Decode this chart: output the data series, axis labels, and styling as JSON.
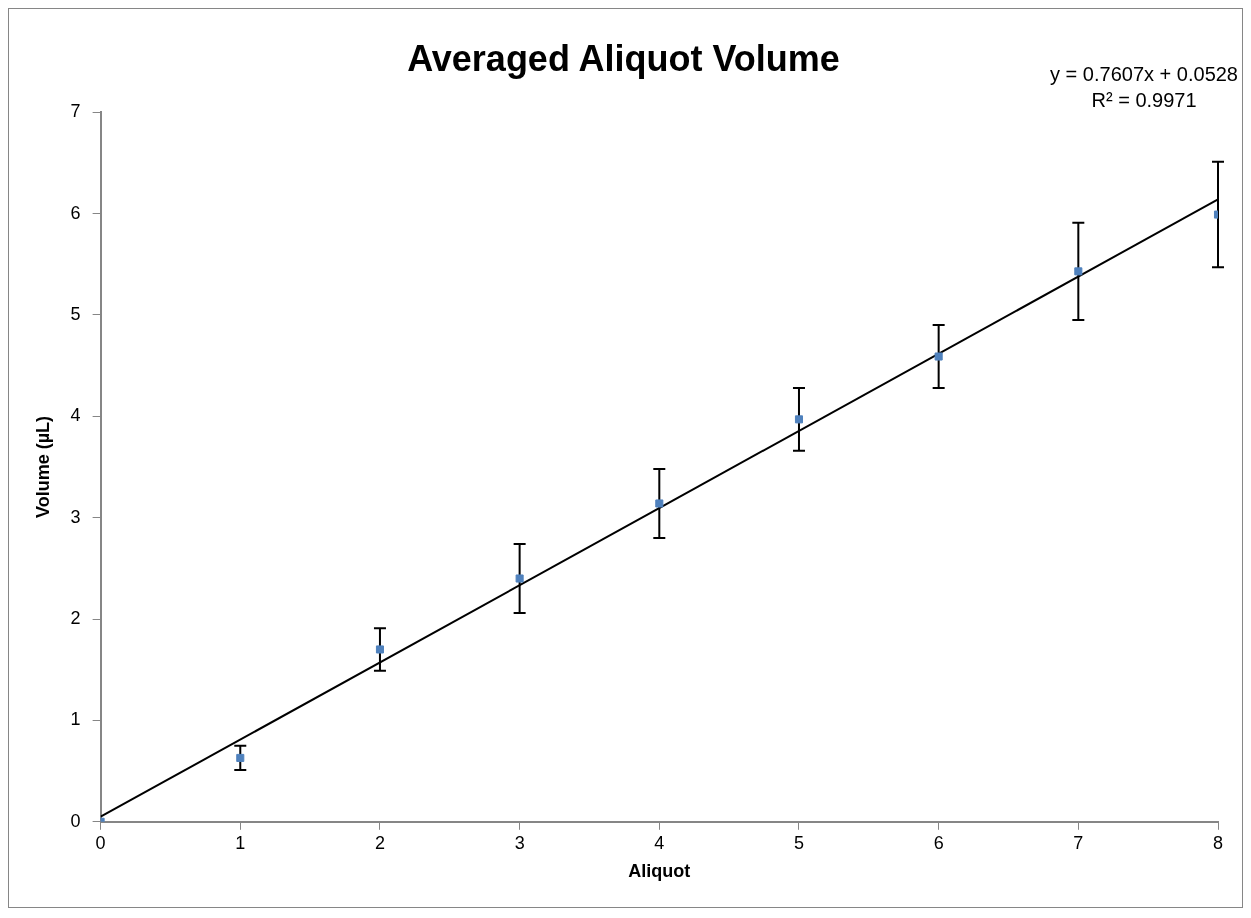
{
  "chart_data": {
    "type": "scatter",
    "title": "Averaged Aliquot Volume",
    "xlabel": "Aliquot",
    "ylabel": "Volume (µL)",
    "x": [
      0,
      1,
      2,
      3,
      4,
      5,
      6,
      7,
      8
    ],
    "series": [
      {
        "type": "scatter",
        "color": "#4f81bd",
        "marker": "square",
        "values": [
          0,
          0.63,
          1.7,
          2.4,
          3.14,
          3.97,
          4.59,
          5.43,
          5.99
        ],
        "errors": [
          null,
          0.12,
          0.21,
          0.34,
          0.34,
          0.31,
          0.31,
          0.48,
          0.52
        ]
      },
      {
        "type": "line",
        "color": "#000000",
        "x": [
          0,
          8
        ],
        "values": [
          0.05,
          6.14
        ]
      }
    ],
    "xlim": [
      0,
      8
    ],
    "xticks": [
      0,
      1,
      2,
      3,
      4,
      5,
      6,
      7,
      8
    ],
    "ylim": [
      0,
      7
    ],
    "yticks": [
      0,
      1,
      2,
      3,
      4,
      5,
      6,
      7
    ],
    "grid": false,
    "legend": false,
    "annotations": [
      "y = 0.7607x + 0.0528",
      "R² = 0.9971"
    ]
  }
}
